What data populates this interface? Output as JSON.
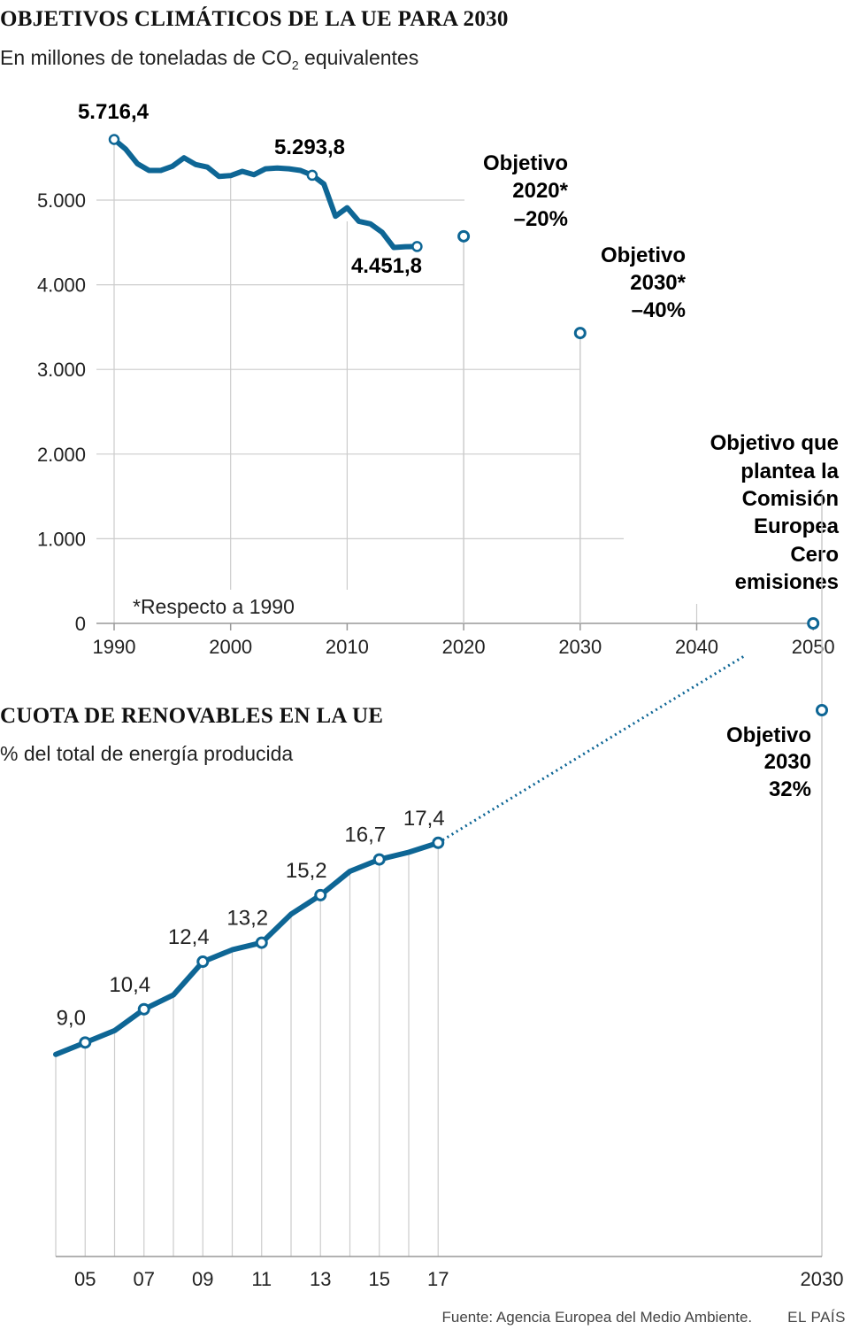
{
  "emissions": {
    "title": "OBJETIVOS CLIMÁTICOS DE LA UE PARA 2030",
    "subtitle_pre": "En millones de toneladas de CO",
    "subtitle_sub": "2",
    "subtitle_post": " equivalentes",
    "footnote": "*Respecto a 1990",
    "labels": {
      "start": "5.716,4",
      "mid": "5.293,8",
      "end": "4.451,8",
      "t2020_l1": "Objetivo",
      "t2020_l2": "2020*",
      "t2020_l3": "–20%",
      "t2030_l1": "Objetivo",
      "t2030_l2": "2030*",
      "t2030_l3": "–40%",
      "t2050_l1": "Objetivo que",
      "t2050_l2": "plantea la",
      "t2050_l3": "Comisión",
      "t2050_l4": "Europea",
      "t2050_l5": "Cero",
      "t2050_l6": "emisiones"
    }
  },
  "renewables": {
    "title": "CUOTA DE RENOVABLES EN LA UE",
    "subtitle": "% del total de energía producida",
    "target_l1": "Objetivo",
    "target_l2": "2030",
    "target_l3": "32%"
  },
  "footer": {
    "source": "Fuente: Agencia Europea del Medio Ambiente.",
    "brand": "EL PAÍS"
  },
  "colors": {
    "series": "#0e6695",
    "grid": "#cccccc",
    "axis": "#999999",
    "text": "#1a1a1a"
  },
  "chart_data": [
    {
      "type": "line",
      "title": "OBJETIVOS CLIMÁTICOS DE LA UE PARA 2030",
      "ylabel": "En millones de toneladas de CO2 equivalentes",
      "ylim": [
        0,
        6000
      ],
      "xlim": [
        1990,
        2050
      ],
      "yticks": [
        0,
        1000,
        2000,
        3000,
        4000,
        5000
      ],
      "ytick_labels": [
        "0",
        "1.000",
        "2.000",
        "3.000",
        "4.000",
        "5.000"
      ],
      "xticks": [
        1990,
        2000,
        2010,
        2020,
        2030,
        2040,
        2050
      ],
      "xtick_labels": [
        "1990",
        "2000",
        "2010",
        "2020",
        "2030",
        "2040",
        "2050"
      ],
      "series": [
        {
          "name": "Emisiones",
          "x": [
            1990,
            1991,
            1992,
            1993,
            1994,
            1995,
            1996,
            1997,
            1998,
            1999,
            2000,
            2001,
            2002,
            2003,
            2004,
            2005,
            2006,
            2007,
            2008,
            2009,
            2010,
            2011,
            2012,
            2013,
            2014,
            2015,
            2016
          ],
          "values": [
            5716.4,
            5600,
            5430,
            5350,
            5350,
            5400,
            5500,
            5420,
            5390,
            5280,
            5290,
            5340,
            5300,
            5370,
            5380,
            5370,
            5350,
            5293.8,
            5190,
            4810,
            4910,
            4750,
            4720,
            4620,
            4440,
            4450,
            4451.8
          ]
        }
      ],
      "targets": [
        {
          "x": 2020,
          "value": 4573,
          "label": "Objetivo 2020* –20%"
        },
        {
          "x": 2030,
          "value": 3430,
          "label": "Objetivo 2030* –40%"
        },
        {
          "x": 2050,
          "value": 0,
          "label": "Objetivo que plantea la Comisión Europea Cero emisiones"
        }
      ],
      "annotations": [
        {
          "x": 1990,
          "value": 5716.4,
          "label": "5.716,4"
        },
        {
          "x": 2007,
          "value": 5293.8,
          "label": "5.293,8"
        },
        {
          "x": 2016,
          "value": 4451.8,
          "label": "4.451,8"
        }
      ],
      "footnote": "*Respecto a 1990"
    },
    {
      "type": "line",
      "title": "CUOTA DE RENOVABLES EN LA UE",
      "ylabel": "% del total de energía producida",
      "ylim": [
        0,
        35
      ],
      "xticks": [
        2005,
        2007,
        2009,
        2011,
        2013,
        2015,
        2017,
        2030
      ],
      "xtick_labels": [
        "05",
        "07",
        "09",
        "11",
        "13",
        "15",
        "17",
        "2030"
      ],
      "series": [
        {
          "name": "Renovables",
          "x": [
            2004,
            2005,
            2006,
            2007,
            2008,
            2009,
            2010,
            2011,
            2012,
            2013,
            2014,
            2015,
            2016,
            2017
          ],
          "values": [
            8.5,
            9.0,
            9.5,
            10.4,
            11.0,
            12.4,
            12.9,
            13.2,
            14.4,
            15.2,
            16.2,
            16.7,
            17.0,
            17.4
          ]
        }
      ],
      "point_labels": [
        {
          "x": 2005,
          "value": 9.0,
          "label": "9,0"
        },
        {
          "x": 2007,
          "value": 10.4,
          "label": "10,4"
        },
        {
          "x": 2009,
          "value": 12.4,
          "label": "12,4"
        },
        {
          "x": 2011,
          "value": 13.2,
          "label": "13,2"
        },
        {
          "x": 2013,
          "value": 15.2,
          "label": "15,2"
        },
        {
          "x": 2015,
          "value": 16.7,
          "label": "16,7"
        },
        {
          "x": 2017,
          "value": 17.4,
          "label": "17,4"
        }
      ],
      "projection": {
        "from": {
          "x": 2017,
          "value": 17.4
        },
        "to": {
          "x": 2030,
          "value": 32
        }
      },
      "target": {
        "x": 2030,
        "value": 32,
        "label": "Objetivo 2030 32%"
      }
    }
  ]
}
